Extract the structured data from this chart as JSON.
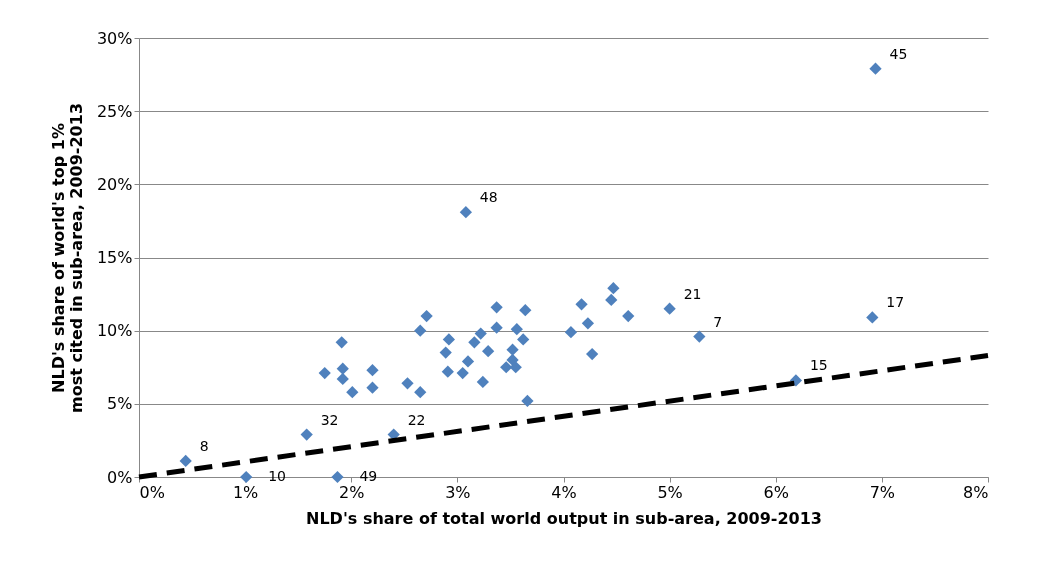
{
  "chart_data": {
    "type": "scatter",
    "xlabel": "NLD's share of total world output in sub-area, 2009-2013",
    "ylabel": "NLD's share of world's top 1% most cited in sub-area, 2009-2013",
    "xlim": [
      0,
      8
    ],
    "ylim": [
      0,
      30
    ],
    "xticks": [
      {
        "value": 0,
        "label": "0%"
      },
      {
        "value": 1,
        "label": "1%"
      },
      {
        "value": 2,
        "label": "2%"
      },
      {
        "value": 3,
        "label": "3%"
      },
      {
        "value": 4,
        "label": "4%"
      },
      {
        "value": 5,
        "label": "5%"
      },
      {
        "value": 6,
        "label": "6%"
      },
      {
        "value": 7,
        "label": "7%"
      },
      {
        "value": 8,
        "label": "8%"
      }
    ],
    "yticks": [
      {
        "value": 0,
        "label": "0%"
      },
      {
        "value": 5,
        "label": "5%"
      },
      {
        "value": 10,
        "label": "10%"
      },
      {
        "value": 15,
        "label": "15%"
      },
      {
        "value": 20,
        "label": "20%"
      },
      {
        "value": 25,
        "label": "25%"
      },
      {
        "value": 30,
        "label": "30%"
      }
    ],
    "grid": "y",
    "marker": "diamond",
    "series": [
      {
        "color": "#4f81bd",
        "x": [
          0.44,
          1.01,
          1.58,
          1.87,
          2.4,
          6.94,
          3.08,
          5.0,
          6.91,
          5.28,
          6.19,
          1.75,
          1.91,
          1.92,
          1.92,
          2.01,
          2.2,
          2.2,
          2.53,
          2.65,
          2.65,
          2.71,
          2.92,
          2.89,
          2.91,
          3.05,
          3.1,
          3.16,
          3.22,
          3.24,
          3.29,
          3.37,
          3.37,
          3.46,
          3.52,
          3.52,
          3.55,
          3.56,
          3.62,
          3.64,
          3.66,
          4.07,
          4.17,
          4.23,
          4.27,
          4.45,
          4.47,
          4.61
        ],
        "values": [
          1.1,
          0,
          2.9,
          0,
          2.9,
          27.9,
          18.1,
          11.5,
          10.9,
          9.6,
          6.6,
          7.1,
          9.2,
          7.4,
          6.7,
          5.8,
          7.3,
          6.1,
          6.4,
          5.8,
          10.0,
          11.0,
          9.4,
          8.5,
          7.2,
          7.1,
          7.9,
          9.2,
          9.8,
          6.5,
          8.6,
          11.6,
          10.2,
          7.5,
          8.0,
          8.7,
          7.5,
          10.1,
          9.4,
          11.4,
          5.2,
          9.9,
          11.8,
          10.5,
          8.4,
          12.1,
          12.9,
          11.0
        ]
      },
      {
        "type": "line",
        "color": "#000000",
        "line_style": "dashed",
        "marker": "none",
        "x": [
          0,
          8
        ],
        "values": [
          0,
          8.3
        ]
      }
    ],
    "annotations": [
      {
        "text": "8",
        "x": 0.44,
        "y": 1.1
      },
      {
        "text": "10",
        "x": 1.01,
        "y": 0
      },
      {
        "text": "32",
        "x": 1.58,
        "y": 2.9
      },
      {
        "text": "49",
        "x": 1.87,
        "y": 0
      },
      {
        "text": "22",
        "x": 2.4,
        "y": 2.9
      },
      {
        "text": "45",
        "x": 6.94,
        "y": 27.9
      },
      {
        "text": "48",
        "x": 3.08,
        "y": 18.1
      },
      {
        "text": "21",
        "x": 5.0,
        "y": 11.5
      },
      {
        "text": "17",
        "x": 6.91,
        "y": 10.9
      },
      {
        "text": "7",
        "x": 5.28,
        "y": 9.6
      },
      {
        "text": "15",
        "x": 6.19,
        "y": 6.6
      }
    ]
  }
}
